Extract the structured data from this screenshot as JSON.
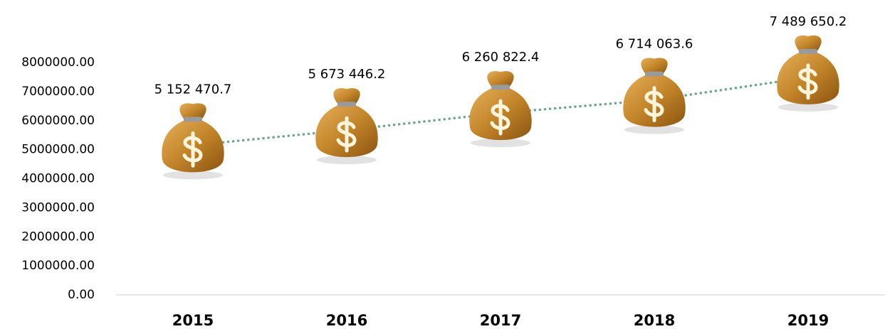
{
  "chart_data": {
    "type": "line",
    "categories": [
      "2015",
      "2016",
      "2017",
      "2018",
      "2019"
    ],
    "values": [
      5152470.7,
      5673446.2,
      6260822.4,
      6714063.6,
      7489650.2
    ],
    "value_labels": [
      "5 152 470.7",
      "5 673 446.2",
      "6 260 822.4",
      "6 714 063.6",
      "7 489 650.2"
    ],
    "color": "#6fa58f",
    "ylim": [
      0,
      8000000
    ],
    "yticks": [
      {
        "value": 0,
        "label": "0.00"
      },
      {
        "value": 1000000,
        "label": "1000000.00"
      },
      {
        "value": 2000000,
        "label": "2000000.00"
      },
      {
        "value": 3000000,
        "label": "3000000.00"
      },
      {
        "value": 4000000,
        "label": "4000000.00"
      },
      {
        "value": 5000000,
        "label": "5000000.00"
      },
      {
        "value": 6000000,
        "label": "6000000.00"
      },
      {
        "value": 7000000,
        "label": "7000000.00"
      },
      {
        "value": 8000000,
        "label": "8000000.00"
      }
    ],
    "grid": false
  }
}
